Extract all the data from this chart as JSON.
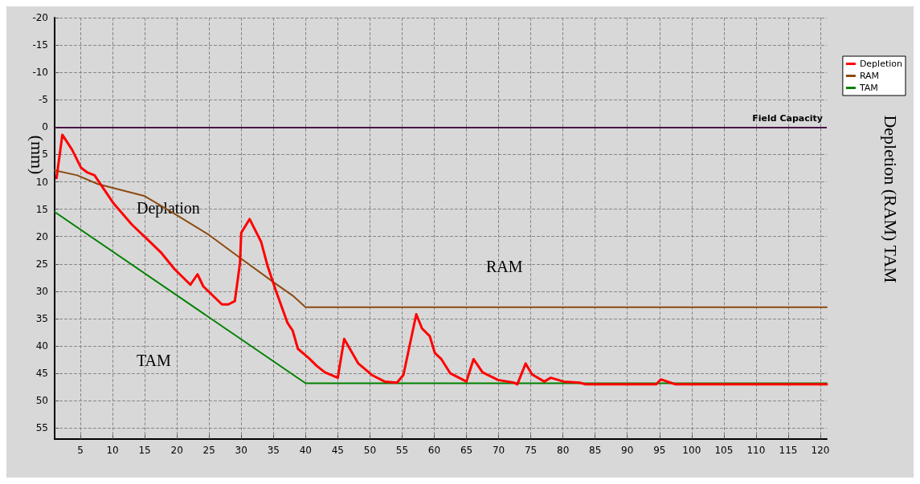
{
  "chart_data": {
    "type": "line",
    "ylabel": "(mm)",
    "y2label": "Depletion (RAM) TAM",
    "xlim": [
      1,
      121
    ],
    "xticks": [
      5,
      10,
      15,
      20,
      25,
      30,
      35,
      40,
      45,
      50,
      55,
      60,
      65,
      70,
      75,
      80,
      85,
      90,
      95,
      100,
      105,
      110,
      115,
      120
    ],
    "ylim": [
      57,
      -20
    ],
    "yticks": [
      -20,
      -15,
      -10,
      -5,
      0,
      5,
      10,
      15,
      20,
      25,
      30,
      35,
      40,
      45,
      50,
      55
    ],
    "grid": true,
    "legend": "top right",
    "marker": "none",
    "line_style": "solid",
    "series": [
      {
        "name": "Depletion",
        "color": "#ff0000",
        "x": [
          1.3,
          2.2,
          3.7,
          5.1,
          6.1,
          7.2,
          8,
          10.2,
          13,
          15.5,
          17.6,
          19.6,
          22.1,
          23.2,
          24.1,
          27,
          28,
          29,
          29.8,
          30,
          31.3,
          33.1,
          34.1,
          35.3,
          37.2,
          38,
          38.8,
          40.5,
          41.7,
          43,
          45,
          46,
          48.2,
          50.3,
          52.3,
          54.2,
          55.2,
          57.2,
          58.1,
          59.3,
          60.1,
          61.1,
          62.5,
          65,
          66.1,
          67.5,
          69.9,
          72.4,
          72.9,
          74.2,
          75.2,
          77.1,
          78.1,
          80.1,
          82.6,
          83.5,
          94.5,
          95.2,
          96.7,
          97.5,
          121
        ],
        "values": [
          9.3,
          1.4,
          4.1,
          7.4,
          8.3,
          8.8,
          10.2,
          14,
          17.8,
          20.6,
          23,
          25.9,
          28.8,
          26.9,
          29.1,
          32.4,
          32.4,
          31.8,
          24.9,
          19.3,
          16.8,
          21,
          25.4,
          29.6,
          35.8,
          37.2,
          40.5,
          42.2,
          43.6,
          44.8,
          45.8,
          38.7,
          43.2,
          45.3,
          46.5,
          46.7,
          45.3,
          34.2,
          36.8,
          38.2,
          41.3,
          42.4,
          45,
          46.5,
          42.4,
          44.8,
          46.2,
          46.7,
          47,
          43.2,
          45.2,
          46.5,
          45.8,
          46.5,
          46.7,
          47,
          47,
          46.1,
          46.7,
          47,
          47
        ]
      },
      {
        "name": "RAM",
        "color": "#8b4a10",
        "x": [
          1,
          4.5,
          7.7,
          15,
          20,
          25,
          29.6,
          35.2,
          38,
          40,
          121
        ],
        "values": [
          7.9,
          8.8,
          10.4,
          12.6,
          16.1,
          19.7,
          23.7,
          28.5,
          30.8,
          32.9,
          32.9
        ]
      },
      {
        "name": "TAM",
        "color": "#008000",
        "x": [
          1,
          40,
          121
        ],
        "values": [
          15.5,
          46.8,
          46.8
        ]
      }
    ],
    "ref_lines": [
      {
        "axis": "y",
        "value": 0,
        "label": "Field Capacity",
        "color": "#4b1248"
      }
    ],
    "annotations": [
      "Deplation",
      "RAM",
      "TAM"
    ]
  }
}
